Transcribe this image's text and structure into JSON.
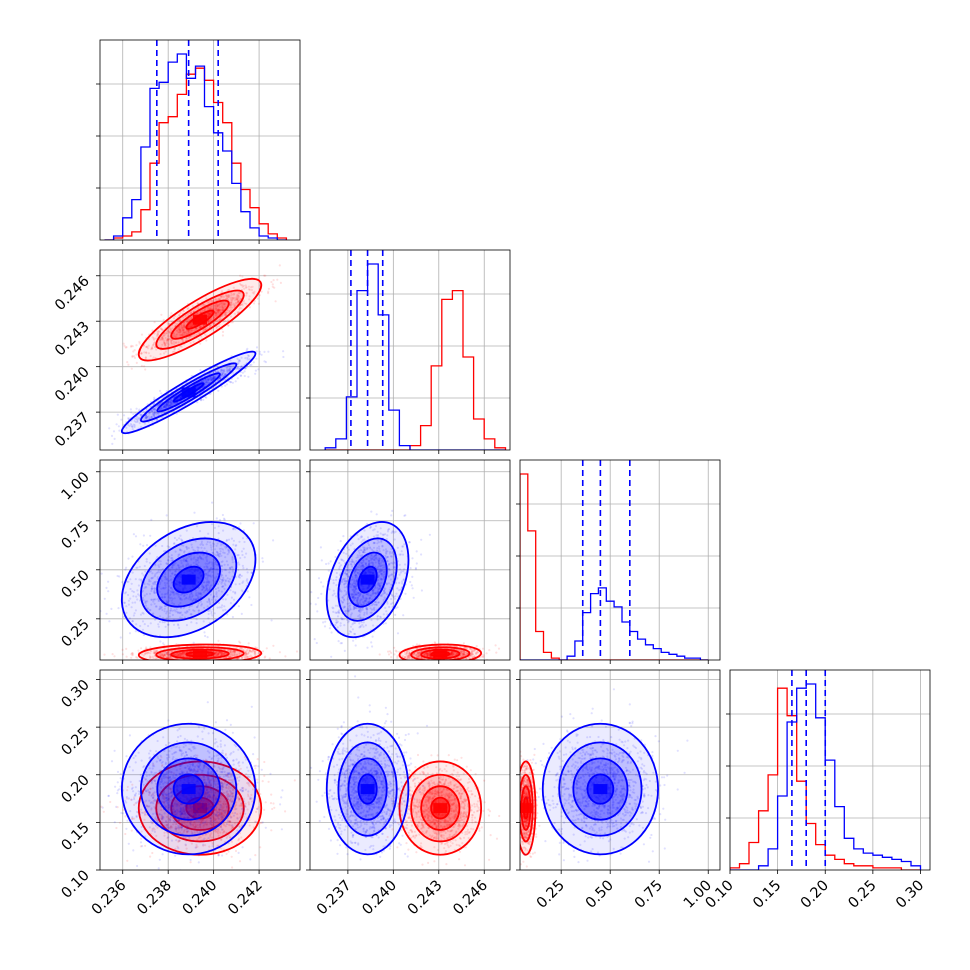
{
  "chart_data": {
    "type": "corner",
    "grid": true,
    "parameters": [
      {
        "ticks": [
          0.236,
          0.238,
          0.24,
          0.242
        ],
        "tick_labels": [
          "0.236",
          "0.238",
          "0.240",
          "0.242"
        ],
        "range": [
          0.235,
          0.2438
        ]
      },
      {
        "ticks": [
          0.237,
          0.24,
          0.243,
          0.246
        ],
        "tick_labels": [
          "0.237",
          "0.240",
          "0.243",
          "0.246"
        ],
        "range": [
          0.2345,
          0.2477
        ]
      },
      {
        "ticks": [
          0.25,
          0.5,
          0.75,
          1.0
        ],
        "tick_labels": [
          "0.25",
          "0.50",
          "0.75",
          "1.00"
        ],
        "range": [
          0.04,
          1.06
        ]
      },
      {
        "ticks": [
          0.1,
          0.15,
          0.2,
          0.25,
          0.3
        ],
        "tick_labels": [
          "0.10",
          "0.15",
          "0.20",
          "0.25",
          "0.30"
        ],
        "range": [
          0.1,
          0.31
        ]
      }
    ],
    "series": [
      {
        "color": "#ff0000",
        "means": [
          0.2394,
          0.2431,
          0.07,
          0.165
        ],
        "sds": [
          0.0011,
          0.0011,
          0.02,
          0.02
        ],
        "corr": {
          "1_0": 0.85,
          "2_0": 0.1,
          "2_1": 0.1,
          "3_0": 0.0,
          "3_1": 0.0,
          "3_2": 0.0
        },
        "hist": [
          {
            "bins": [
              0.2352,
              0.2356,
              0.236,
              0.2364,
              0.2368,
              0.2372,
              0.2376,
              0.238,
              0.2384,
              0.2388,
              0.2392,
              0.2396,
              0.24,
              0.2404,
              0.2408,
              0.2412,
              0.2416,
              0.242,
              0.2424,
              0.2428,
              0.2432
            ],
            "counts": [
              0,
              1,
              2,
              4,
              15,
              38,
              58,
              61,
              72,
              82,
              85,
              79,
              68,
              58,
              38,
              25,
              16,
              8,
              3,
              1
            ]
          },
          {
            "bins": [
              0.2355,
              0.2362,
              0.2369,
              0.2376,
              0.2383,
              0.239,
              0.2397,
              0.2404,
              0.2411,
              0.2418,
              0.2425,
              0.2432,
              0.2439,
              0.2446,
              0.2453,
              0.246,
              0.2467,
              0.2474
            ],
            "counts": [
              0,
              0,
              0,
              0,
              0,
              0,
              0,
              0,
              2,
              11,
              38,
              68,
              72,
              42,
              14,
              5,
              1
            ]
          },
          {
            "bins": [
              0.04,
              0.08,
              0.12,
              0.16,
              0.2,
              0.24,
              0.28,
              0.32,
              0.36,
              0.4,
              0.44,
              0.48,
              0.52,
              0.56,
              0.6,
              0.64,
              0.68,
              0.72,
              0.76,
              0.8,
              0.84,
              0.88,
              0.92,
              0.96,
              1.0
            ],
            "counts": [
              98,
              68,
              15,
              4,
              1,
              0,
              0,
              0,
              0,
              0,
              0,
              0,
              0,
              0,
              0,
              0,
              0,
              0,
              0,
              0,
              0,
              0,
              0,
              0
            ]
          },
          {
            "bins": [
              0.1,
              0.11,
              0.12,
              0.13,
              0.14,
              0.15,
              0.16,
              0.17,
              0.18,
              0.19,
              0.2,
              0.21,
              0.22,
              0.23,
              0.24,
              0.25,
              0.26,
              0.27,
              0.28,
              0.29,
              0.3
            ],
            "counts": [
              1,
              3,
              13,
              28,
              45,
              86,
              73,
              42,
              22,
              12,
              7,
              5,
              3,
              2,
              2,
              1,
              1,
              1,
              0,
              0
            ]
          }
        ]
      },
      {
        "color": "#0000ff",
        "means": [
          0.2389,
          0.2383,
          0.45,
          0.185
        ],
        "sds": [
          0.0012,
          0.0011,
          0.12,
          0.028
        ],
        "corr": {
          "1_0": 0.95,
          "2_0": 0.35,
          "2_1": 0.35,
          "3_0": 0.0,
          "3_1": 0.0,
          "3_2": 0.0
        },
        "quantiles": [
          [
            0.2375,
            0.2389,
            0.2402
          ],
          [
            0.2372,
            0.2383,
            0.2393
          ],
          [
            0.36,
            0.45,
            0.6
          ],
          [
            0.165,
            0.18,
            0.2
          ]
        ],
        "hist": [
          {
            "bins": [
              0.2352,
              0.2356,
              0.236,
              0.2364,
              0.2368,
              0.2372,
              0.2376,
              0.238,
              0.2384,
              0.2388,
              0.2392,
              0.2396,
              0.24,
              0.2404,
              0.2408,
              0.2412,
              0.2416,
              0.242,
              0.2424,
              0.2428,
              0.2432
            ],
            "counts": [
              0,
              2,
              11,
              20,
              46,
              75,
              78,
              88,
              92,
              80,
              86,
              66,
              53,
              44,
              28,
              14,
              6,
              2,
              1,
              0
            ]
          },
          {
            "bins": [
              0.2355,
              0.2362,
              0.2369,
              0.2376,
              0.2383,
              0.239,
              0.2397,
              0.2404,
              0.2411,
              0.2418,
              0.2425,
              0.2432,
              0.2439,
              0.2446,
              0.2453,
              0.246,
              0.2467,
              0.2474
            ],
            "counts": [
              1,
              5,
              24,
              72,
              84,
              61,
              18,
              2,
              0,
              0,
              0,
              0,
              0,
              0,
              0,
              0,
              0
            ]
          },
          {
            "bins": [
              0.04,
              0.08,
              0.12,
              0.16,
              0.2,
              0.24,
              0.28,
              0.32,
              0.36,
              0.4,
              0.44,
              0.48,
              0.52,
              0.56,
              0.6,
              0.64,
              0.68,
              0.72,
              0.76,
              0.8,
              0.84,
              0.88,
              0.92,
              0.96,
              1.0
            ],
            "counts": [
              0,
              0,
              0,
              0,
              0,
              0,
              2,
              10,
              25,
              35,
              38,
              31,
              28,
              20,
              15,
              11,
              8,
              6,
              4,
              3,
              2,
              1,
              1,
              0
            ]
          },
          {
            "bins": [
              0.1,
              0.11,
              0.12,
              0.13,
              0.14,
              0.15,
              0.16,
              0.17,
              0.18,
              0.19,
              0.2,
              0.21,
              0.22,
              0.23,
              0.24,
              0.25,
              0.26,
              0.27,
              0.28,
              0.29,
              0.3
            ],
            "counts": [
              0,
              0,
              0,
              2,
              10,
              35,
              70,
              86,
              88,
              72,
              52,
              30,
              15,
              10,
              8,
              7,
              6,
              5,
              4,
              2
            ]
          }
        ]
      }
    ]
  }
}
